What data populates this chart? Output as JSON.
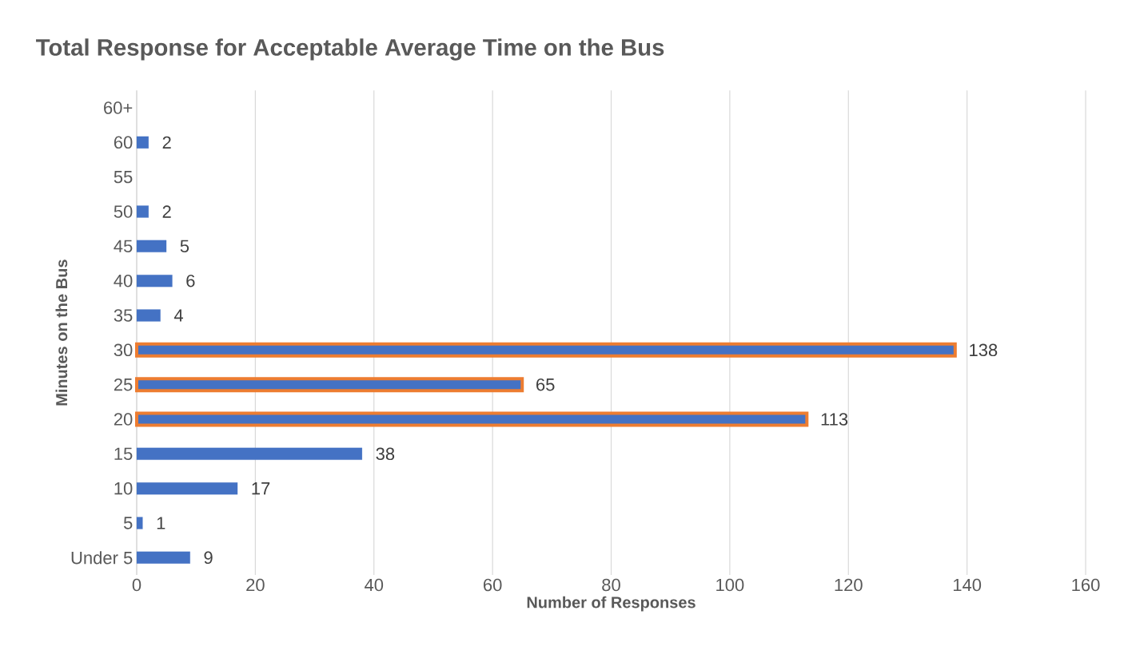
{
  "chart_data": {
    "type": "bar",
    "orientation": "horizontal",
    "title": "Total Response for Acceptable Average Time on the Bus",
    "xlabel": "Number of Responses",
    "ylabel": "Minutes on the Bus",
    "categories": [
      "60+",
      "60",
      "55",
      "50",
      "45",
      "40",
      "35",
      "30",
      "25",
      "20",
      "15",
      "10",
      "5",
      "Under 5"
    ],
    "values": [
      null,
      2,
      null,
      2,
      5,
      6,
      4,
      138,
      65,
      113,
      38,
      17,
      1,
      9
    ],
    "color": "#4472c4",
    "colors": [
      "#4472c4",
      "#4472c4",
      "#4472c4",
      "#4472c4",
      "#4472c4",
      "#4472c4",
      "#4472c4",
      "#ed7d31",
      "#ed7d31",
      "#ed7d31",
      "#4472c4",
      "#4472c4",
      "#4472c4",
      "#4472c4"
    ],
    "xlim": [
      0,
      160
    ],
    "xticks": [
      0,
      20,
      40,
      60,
      80,
      100,
      120,
      140,
      160
    ],
    "grid": "x",
    "data_labels": true
  }
}
